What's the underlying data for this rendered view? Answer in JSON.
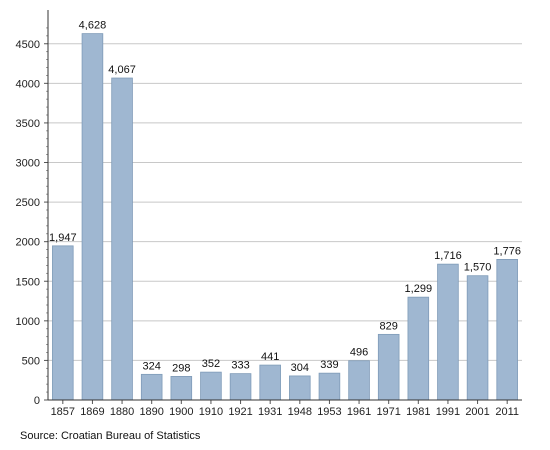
{
  "chart_data": {
    "type": "bar",
    "categories": [
      "1857",
      "1869",
      "1880",
      "1890",
      "1900",
      "1910",
      "1921",
      "1931",
      "1948",
      "1953",
      "1961",
      "1971",
      "1981",
      "1991",
      "2001",
      "2011"
    ],
    "values": [
      1947,
      4628,
      4067,
      324,
      298,
      352,
      333,
      441,
      304,
      339,
      496,
      829,
      1299,
      1716,
      1570,
      1776
    ],
    "value_labels": [
      "1,947",
      "4,628",
      "4,067",
      "324",
      "298",
      "352",
      "333",
      "441",
      "304",
      "339",
      "496",
      "829",
      "1,299",
      "1,716",
      "1,570",
      "1,776"
    ],
    "ylim": [
      0,
      4800
    ],
    "yticks": [
      0,
      500,
      1000,
      1500,
      2000,
      2500,
      3000,
      3500,
      4000,
      4500
    ],
    "title": "",
    "xlabel": "",
    "ylabel": "",
    "grid": true,
    "bar_color": "#9fb7d1",
    "bar_edge_color": "#7f9bb8",
    "grid_color": "#c8c8c8"
  },
  "source_note": "Source: Croatian Bureau of Statistics"
}
